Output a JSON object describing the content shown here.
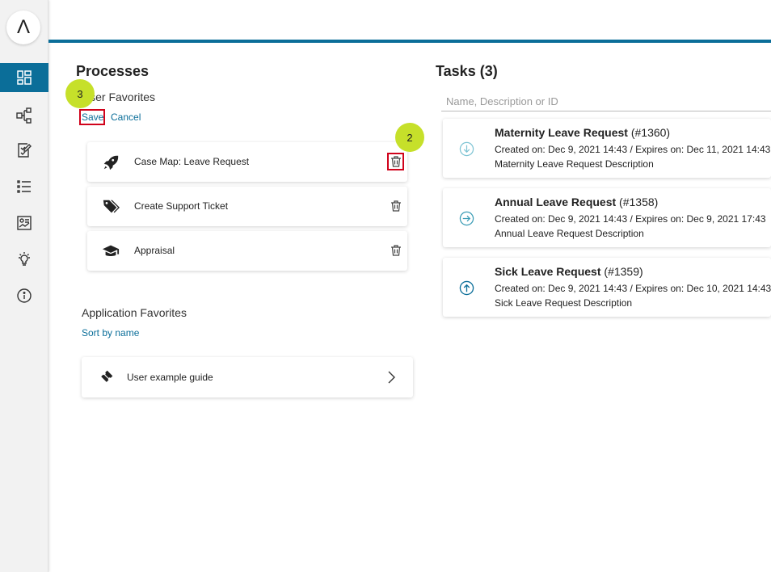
{
  "logo": {
    "glyph": "Λ"
  },
  "sidebar": {
    "items": [
      {
        "name": "dashboard-icon",
        "active": true
      },
      {
        "name": "process-map-icon",
        "active": false
      },
      {
        "name": "task-edit-icon",
        "active": false
      },
      {
        "name": "list-icon",
        "active": false
      },
      {
        "name": "report-icon",
        "active": false
      },
      {
        "name": "lightbulb-icon",
        "active": false
      },
      {
        "name": "info-icon",
        "active": false
      }
    ]
  },
  "processes": {
    "title": "Processes",
    "user_favorites_label": "User Favorites",
    "save_label": "Save",
    "cancel_label": "Cancel",
    "favorites": [
      {
        "label": "Case Map: Leave Request",
        "icon": "rocket-icon"
      },
      {
        "label": "Create Support Ticket",
        "icon": "tags-icon"
      },
      {
        "label": "Appraisal",
        "icon": "graduation-cap-icon"
      }
    ],
    "app_favorites_label": "Application Favorites",
    "sort_label": "Sort by name",
    "app_favorites": [
      {
        "label": "User example guide",
        "icon": "ticket-icon"
      }
    ]
  },
  "annotations": {
    "badge_save": "3",
    "badge_delete": "2"
  },
  "tasks": {
    "title": "Tasks (3)",
    "search_placeholder": "Name, Description or ID",
    "items": [
      {
        "name": "Maternity Leave Request",
        "id": "(#1360)",
        "meta": "Created on: Dec 9, 2021 14:43 / Expires on: Dec 11, 2021 14:43",
        "desc": "Maternity Leave Request Description",
        "icon": "arrow-down-circle-icon"
      },
      {
        "name": "Annual Leave Request",
        "id": "(#1358)",
        "meta": "Created on: Dec 9, 2021 14:43 / Expires on: Dec 9, 2021 17:43",
        "desc": "Annual Leave Request Description",
        "icon": "arrow-right-circle-icon"
      },
      {
        "name": "Sick Leave Request",
        "id": "(#1359)",
        "meta": "Created on: Dec 9, 2021 14:43 / Expires on: Dec 10, 2021 14:43",
        "desc": "Sick Leave Request Description",
        "icon": "arrow-up-circle-icon"
      }
    ]
  },
  "colors": {
    "accent": "#0b6e99",
    "badge": "#c6e02a",
    "highlight": "#d0021b"
  }
}
